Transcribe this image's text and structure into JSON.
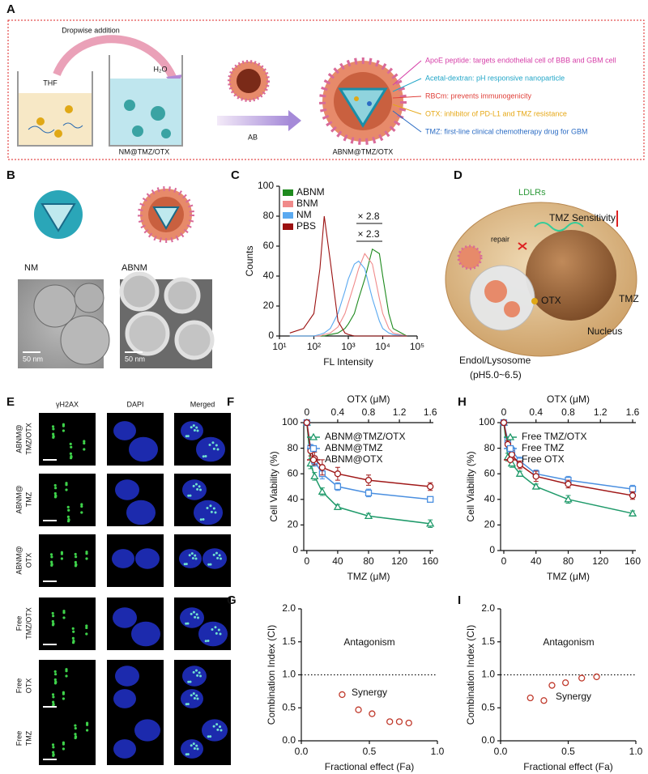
{
  "panel_labels": {
    "A": "A",
    "B": "B",
    "D": "D",
    "E": "E"
  },
  "panel_a": {
    "dropwise": "Dropwise addition",
    "solvent1": "THF",
    "solvent2": "H₂O",
    "product1": "NM@TMZ/OTX",
    "step": "AB",
    "product2": "ABNM@TMZ/OTX",
    "legend": [
      {
        "text": "ApoE peptide: targets endothelial cell of BBB and GBM cell",
        "color": "#d63fa8"
      },
      {
        "text": "Acetal-dextran: pH responsive nanoparticle",
        "color": "#22a6c8"
      },
      {
        "text": "RBCm: prevents immunogenicity",
        "color": "#e0403a"
      },
      {
        "text": "OTX:  inhibitor of PD-L1 and TMZ resistance",
        "color": "#e6a817"
      },
      {
        "text": "TMZ: first-line clinical chemotherapy drug for GBM",
        "color": "#2b6cc4"
      }
    ]
  },
  "panel_b": {
    "labels": [
      "NM",
      "ABNM"
    ],
    "scale_bars": [
      "50 nm",
      "50 nm"
    ]
  },
  "panel_d": {
    "ldlrs": "LDLRs",
    "sensitivity": "TMZ Sensitivity",
    "repair": "repair",
    "otx": "OTX",
    "tmz": "TMZ",
    "endosome": [
      "Endol/Lysosome",
      "(pH5.0~6.5)"
    ],
    "nucleus": "Nucleus"
  },
  "panel_e": {
    "columns": [
      "γH2AX",
      "DAPI",
      "Merged"
    ],
    "rows": [
      [
        "ABNM@",
        "TMZ/OTX"
      ],
      [
        "ABNM@",
        "TMZ"
      ],
      [
        "ABNM@",
        "OTX"
      ],
      [
        "Free",
        "TMZ/OTX"
      ],
      [
        "Free",
        "OTX"
      ],
      [
        "Free",
        "TMZ"
      ]
    ]
  },
  "chart_data": [
    {
      "panel": "C",
      "type": "line",
      "x_label": "FL Intensity",
      "y_label": "Counts",
      "xscale": "log",
      "xlim": [
        10,
        100000
      ],
      "xticks": [
        {
          "value": 10,
          "label": "10¹"
        },
        {
          "value": 100,
          "label": "10²"
        },
        {
          "value": 1000,
          "label": "10³"
        },
        {
          "value": 10000,
          "label": "10⁴"
        },
        {
          "value": 100000,
          "label": "10⁵"
        }
      ],
      "ylim": [
        0,
        100
      ],
      "yticks": [
        0,
        20,
        40,
        60,
        80,
        100
      ],
      "legend": "upper left",
      "x": [
        20,
        50,
        100,
        150,
        200,
        300,
        500,
        800,
        1000,
        1500,
        2000,
        3000,
        5000,
        8000,
        10000,
        15000,
        20000,
        50000
      ],
      "series": [
        {
          "name": "ABNM",
          "color": "#1e8a1e",
          "values": [
            0,
            0,
            0,
            0,
            0,
            1,
            2,
            5,
            8,
            15,
            25,
            38,
            58,
            55,
            40,
            15,
            5,
            0
          ]
        },
        {
          "name": "BNM",
          "color": "#f08a8a",
          "values": [
            0,
            0,
            0,
            0,
            1,
            2,
            6,
            15,
            22,
            35,
            45,
            55,
            48,
            25,
            15,
            5,
            2,
            0
          ]
        },
        {
          "name": "NM",
          "color": "#5aa9f0",
          "values": [
            0,
            0,
            0,
            1,
            2,
            5,
            15,
            30,
            38,
            48,
            50,
            45,
            25,
            10,
            5,
            2,
            1,
            0
          ]
        },
        {
          "name": "PBS",
          "color": "#9b1010",
          "values": [
            2,
            5,
            15,
            45,
            80,
            50,
            10,
            2,
            1,
            0,
            0,
            0,
            0,
            0,
            0,
            0,
            0,
            0
          ]
        }
      ],
      "annotations": [
        "× 2.8",
        "× 2.3"
      ]
    },
    {
      "panel": "F",
      "type": "line",
      "x_label": "TMZ (μM)",
      "y_label": "Cell Viability (%)",
      "x2_label": "OTX (μM)",
      "xlim": [
        -4,
        164
      ],
      "xticks": [
        0,
        40,
        80,
        120,
        160
      ],
      "x2lim": [
        -0.04,
        1.64
      ],
      "x2ticks": [
        0,
        0.4,
        0.8,
        1.2,
        1.6
      ],
      "ylim": [
        0,
        100
      ],
      "yticks": [
        0,
        20,
        40,
        60,
        80,
        100
      ],
      "legend": "upper left",
      "x": [
        0,
        5,
        10,
        20,
        40,
        80,
        160
      ],
      "series": [
        {
          "name": "ABNM@TMZ/OTX",
          "color": "#1f9a6a",
          "marker": "triangle",
          "values": [
            100,
            68,
            58,
            46,
            34,
            27,
            21
          ],
          "errors": [
            2,
            4,
            3,
            3,
            2,
            2,
            3
          ]
        },
        {
          "name": "ABNM@TMZ",
          "color": "#4a8fe0",
          "marker": "square",
          "values": [
            100,
            80,
            70,
            60,
            50,
            45,
            40
          ],
          "errors": [
            2,
            3,
            4,
            4,
            3,
            3,
            2
          ]
        },
        {
          "name": "ABNM@OTX",
          "color": "#a01818",
          "marker": "circle",
          "values": [
            100,
            78,
            72,
            65,
            60,
            55,
            50
          ],
          "errors": [
            2,
            4,
            5,
            6,
            5,
            4,
            3
          ]
        }
      ]
    },
    {
      "panel": "G",
      "type": "scatter",
      "x_label": "Fractional effect (Fa)",
      "y_label": "Combination Index (CI)",
      "xlim": [
        0,
        1
      ],
      "xticks": [
        {
          "value": 0,
          "label": "0.0"
        },
        0.5,
        {
          "value": 1,
          "label": "1.0"
        }
      ],
      "ylim": [
        0,
        2
      ],
      "yticks": [
        {
          "value": 0,
          "label": "0.0"
        },
        0.5,
        {
          "value": 1,
          "label": "1.0"
        },
        1.5,
        {
          "value": 2,
          "label": "2.0"
        }
      ],
      "reference_line": 1,
      "color": "#c0392b",
      "x": [
        0.3,
        0.42,
        0.52,
        0.65,
        0.72,
        0.79
      ],
      "values": [
        0.7,
        0.47,
        0.41,
        0.29,
        0.29,
        0.27
      ],
      "annotations": [
        "Antagonism",
        "Synergy"
      ]
    },
    {
      "panel": "H",
      "type": "line",
      "x_label": "TMZ (μM)",
      "y_label": "Cell Viability (%)",
      "x2_label": "OTX (μM)",
      "xlim": [
        -4,
        164
      ],
      "xticks": [
        0,
        40,
        80,
        120,
        160
      ],
      "x2lim": [
        -0.04,
        1.64
      ],
      "x2ticks": [
        0,
        0.4,
        0.8,
        1.2,
        1.6
      ],
      "ylim": [
        0,
        100
      ],
      "yticks": [
        0,
        20,
        40,
        60,
        80,
        100
      ],
      "legend": "upper left",
      "x": [
        0,
        5,
        10,
        20,
        40,
        80,
        160
      ],
      "series": [
        {
          "name": "Free TMZ/OTX",
          "color": "#1f9a6a",
          "marker": "triangle",
          "values": [
            100,
            73,
            68,
            60,
            50,
            40,
            29
          ],
          "errors": [
            2,
            3,
            3,
            2,
            2,
            3,
            2
          ]
        },
        {
          "name": "Free TMZ",
          "color": "#4a8fe0",
          "marker": "square",
          "values": [
            100,
            86,
            78,
            70,
            60,
            55,
            48
          ],
          "errors": [
            2,
            3,
            3,
            3,
            3,
            3,
            3
          ]
        },
        {
          "name": "Free OTX",
          "color": "#a01818",
          "marker": "circle",
          "values": [
            100,
            83,
            75,
            67,
            58,
            52,
            43
          ],
          "errors": [
            2,
            3,
            3,
            3,
            4,
            3,
            3
          ]
        }
      ]
    },
    {
      "panel": "I",
      "type": "scatter",
      "x_label": "Fractional effect (Fa)",
      "y_label": "Combination Index (CI)",
      "xlim": [
        0,
        1
      ],
      "xticks": [
        {
          "value": 0,
          "label": "0.0"
        },
        0.5,
        {
          "value": 1,
          "label": "1.0"
        }
      ],
      "ylim": [
        0,
        2
      ],
      "yticks": [
        {
          "value": 0,
          "label": "0.0"
        },
        0.5,
        {
          "value": 1,
          "label": "1.0"
        },
        1.5,
        {
          "value": 2,
          "label": "2.0"
        }
      ],
      "reference_line": 1,
      "color": "#c0392b",
      "x": [
        0.22,
        0.32,
        0.38,
        0.48,
        0.6,
        0.71
      ],
      "values": [
        0.65,
        0.61,
        0.84,
        0.88,
        0.95,
        0.97
      ],
      "annotations": [
        "Antagonism",
        "Synergy"
      ]
    }
  ]
}
